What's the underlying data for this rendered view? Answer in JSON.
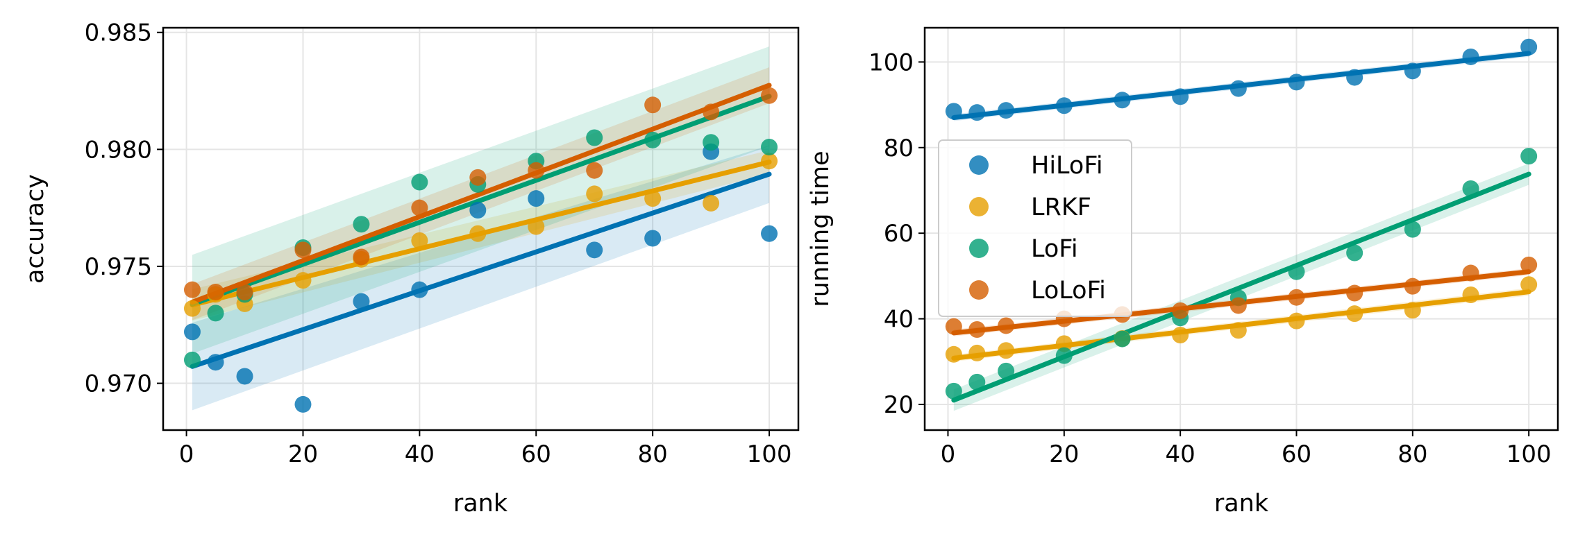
{
  "figure": {
    "layout": "two panels side by side"
  },
  "colors": {
    "HiLoFi": "#0072b2",
    "LRKF": "#e69f00",
    "LoFi": "#009e73",
    "LoLoFi": "#d55e00",
    "grid": "#e5e5e5",
    "axis": "#000000"
  },
  "chart_data": [
    {
      "type": "scatter",
      "panel": "left",
      "title": "",
      "xlabel": "rank",
      "ylabel": "accuracy",
      "xlim": [
        -4,
        105
      ],
      "ylim": [
        0.968,
        0.9852
      ],
      "xticks": [
        0,
        20,
        40,
        60,
        80,
        100
      ],
      "xtick_labels": [
        "0",
        "20",
        "40",
        "60",
        "80",
        "100"
      ],
      "yticks": [
        0.97,
        0.975,
        0.98,
        0.985
      ],
      "ytick_labels": [
        "0.970",
        "0.975",
        "0.980",
        "0.985"
      ],
      "grid": true,
      "legend": null,
      "series": [
        {
          "name": "HiLoFi",
          "x": [
            1,
            5,
            10,
            20,
            30,
            40,
            50,
            60,
            70,
            80,
            90,
            100
          ],
          "y": [
            0.9722,
            0.9709,
            0.9703,
            0.9691,
            0.9735,
            0.974,
            0.9774,
            0.9779,
            0.9757,
            0.9762,
            0.9799,
            0.9764
          ],
          "fit": [
            0.97072,
            0.97894
          ],
          "ci_lower": [
            0.96885,
            0.97771
          ],
          "ci_upper": [
            0.97259,
            0.98017
          ]
        },
        {
          "name": "LRKF",
          "x": [
            1,
            5,
            10,
            20,
            30,
            40,
            50,
            60,
            70,
            80,
            90,
            100
          ],
          "y": [
            0.9732,
            0.9738,
            0.9734,
            0.9744,
            0.9753,
            0.9761,
            0.9764,
            0.9767,
            0.9781,
            0.9779,
            0.9777,
            0.9795
          ],
          "fit": [
            0.97335,
            0.97946
          ],
          "ci_lower": [
            0.97268,
            0.97896
          ],
          "ci_upper": [
            0.97402,
            0.97996
          ]
        },
        {
          "name": "LoFi",
          "x": [
            1,
            5,
            10,
            20,
            30,
            40,
            50,
            60,
            70,
            80,
            90,
            100
          ],
          "y": [
            0.971,
            0.973,
            0.9738,
            0.9758,
            0.9768,
            0.9786,
            0.9785,
            0.9795,
            0.9805,
            0.9804,
            0.9803,
            0.9801
          ],
          "fit": [
            0.97338,
            0.98227
          ],
          "ci_lower": [
            0.97127,
            0.98014
          ],
          "ci_upper": [
            0.97549,
            0.9844
          ]
        },
        {
          "name": "LoLoFi",
          "x": [
            1,
            5,
            10,
            20,
            30,
            40,
            50,
            60,
            70,
            80,
            90,
            100
          ],
          "y": [
            0.974,
            0.9739,
            0.9739,
            0.9757,
            0.9754,
            0.9775,
            0.9788,
            0.9791,
            0.9791,
            0.9819,
            0.9816,
            0.9823
          ],
          "fit": [
            0.97347,
            0.98274
          ],
          "ci_lower": [
            0.9727,
            0.98197
          ],
          "ci_upper": [
            0.97424,
            0.98351
          ]
        }
      ]
    },
    {
      "type": "scatter",
      "panel": "right",
      "title": "",
      "xlabel": "rank",
      "ylabel": "running time",
      "xlim": [
        -4,
        105
      ],
      "ylim": [
        14,
        108
      ],
      "xticks": [
        0,
        20,
        40,
        60,
        80,
        100
      ],
      "xtick_labels": [
        "0",
        "20",
        "40",
        "60",
        "80",
        "100"
      ],
      "yticks": [
        20,
        40,
        60,
        80,
        100
      ],
      "ytick_labels": [
        "20",
        "40",
        "60",
        "80",
        "100"
      ],
      "grid": true,
      "legend": {
        "position": "center-left",
        "entries": [
          "HiLoFi",
          "LRKF",
          "LoFi",
          "LoLoFi"
        ]
      },
      "series": [
        {
          "name": "HiLoFi",
          "x": [
            1,
            5,
            10,
            20,
            30,
            40,
            50,
            60,
            70,
            80,
            90,
            100
          ],
          "y": [
            88.5,
            88.2,
            88.7,
            89.8,
            91.1,
            91.9,
            93.8,
            95.3,
            96.4,
            97.9,
            101.2,
            103.5
          ],
          "fit": [
            87.0,
            102.0
          ],
          "ci_lower": [
            86.2,
            101.2
          ],
          "ci_upper": [
            87.8,
            102.8
          ]
        },
        {
          "name": "LRKF",
          "x": [
            1,
            5,
            10,
            20,
            30,
            40,
            50,
            60,
            70,
            80,
            90,
            100
          ],
          "y": [
            31.7,
            32.0,
            32.6,
            34.2,
            35.4,
            36.2,
            37.3,
            39.5,
            41.2,
            42.0,
            45.6,
            48.0
          ],
          "fit": [
            30.8,
            46.3
          ],
          "ci_lower": [
            30.0,
            45.4
          ],
          "ci_upper": [
            31.6,
            47.2
          ]
        },
        {
          "name": "LoFi",
          "x": [
            1,
            5,
            10,
            20,
            30,
            40,
            50,
            60,
            70,
            80,
            90,
            100
          ],
          "y": [
            23.1,
            25.2,
            27.8,
            31.4,
            35.3,
            40.2,
            44.9,
            51.0,
            55.4,
            60.9,
            70.4,
            78.0
          ],
          "fit": [
            21.0,
            73.8
          ],
          "ci_lower": [
            18.5,
            71.3
          ],
          "ci_upper": [
            23.5,
            76.3
          ]
        },
        {
          "name": "LoLoFi",
          "x": [
            1,
            5,
            10,
            20,
            30,
            40,
            50,
            60,
            70,
            80,
            90,
            100
          ],
          "y": [
            38.2,
            37.5,
            38.4,
            40.0,
            41.0,
            41.9,
            43.1,
            45.0,
            46.0,
            47.6,
            50.7,
            52.6
          ],
          "fit": [
            36.7,
            51.0
          ],
          "ci_lower": [
            35.9,
            50.2
          ],
          "ci_upper": [
            37.5,
            51.8
          ]
        }
      ]
    }
  ]
}
